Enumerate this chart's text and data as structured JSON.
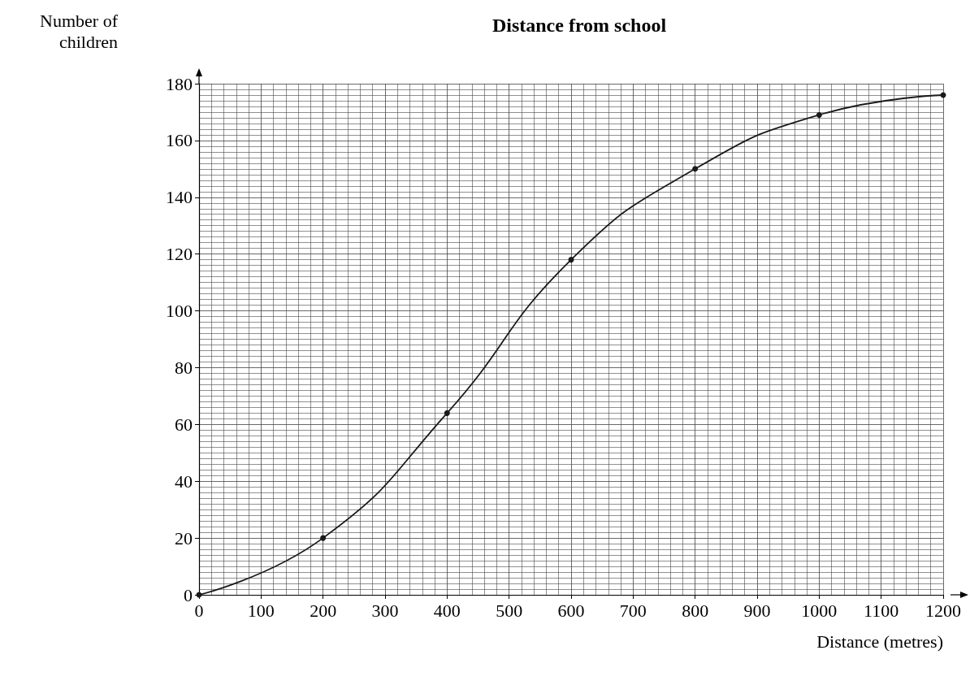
{
  "chart_data": {
    "type": "line",
    "title": "Distance from school",
    "xlabel": "Distance (metres)",
    "ylabel": "Number of children",
    "x": [
      0,
      200,
      400,
      600,
      800,
      1000,
      1200
    ],
    "series": [
      {
        "color": "#1a1a1a",
        "values": [
          0,
          20,
          64,
          118,
          150,
          169,
          176
        ]
      }
    ],
    "xlim": [
      0,
      1200
    ],
    "xticks": [
      0,
      100,
      200,
      300,
      400,
      500,
      600,
      700,
      800,
      900,
      1000,
      1100,
      1200
    ],
    "ylim": [
      0,
      180
    ],
    "yticks": [
      0,
      20,
      40,
      60,
      80,
      100,
      120,
      140,
      160,
      180
    ],
    "grid": true,
    "marker": "circle",
    "line_style": "solid"
  }
}
